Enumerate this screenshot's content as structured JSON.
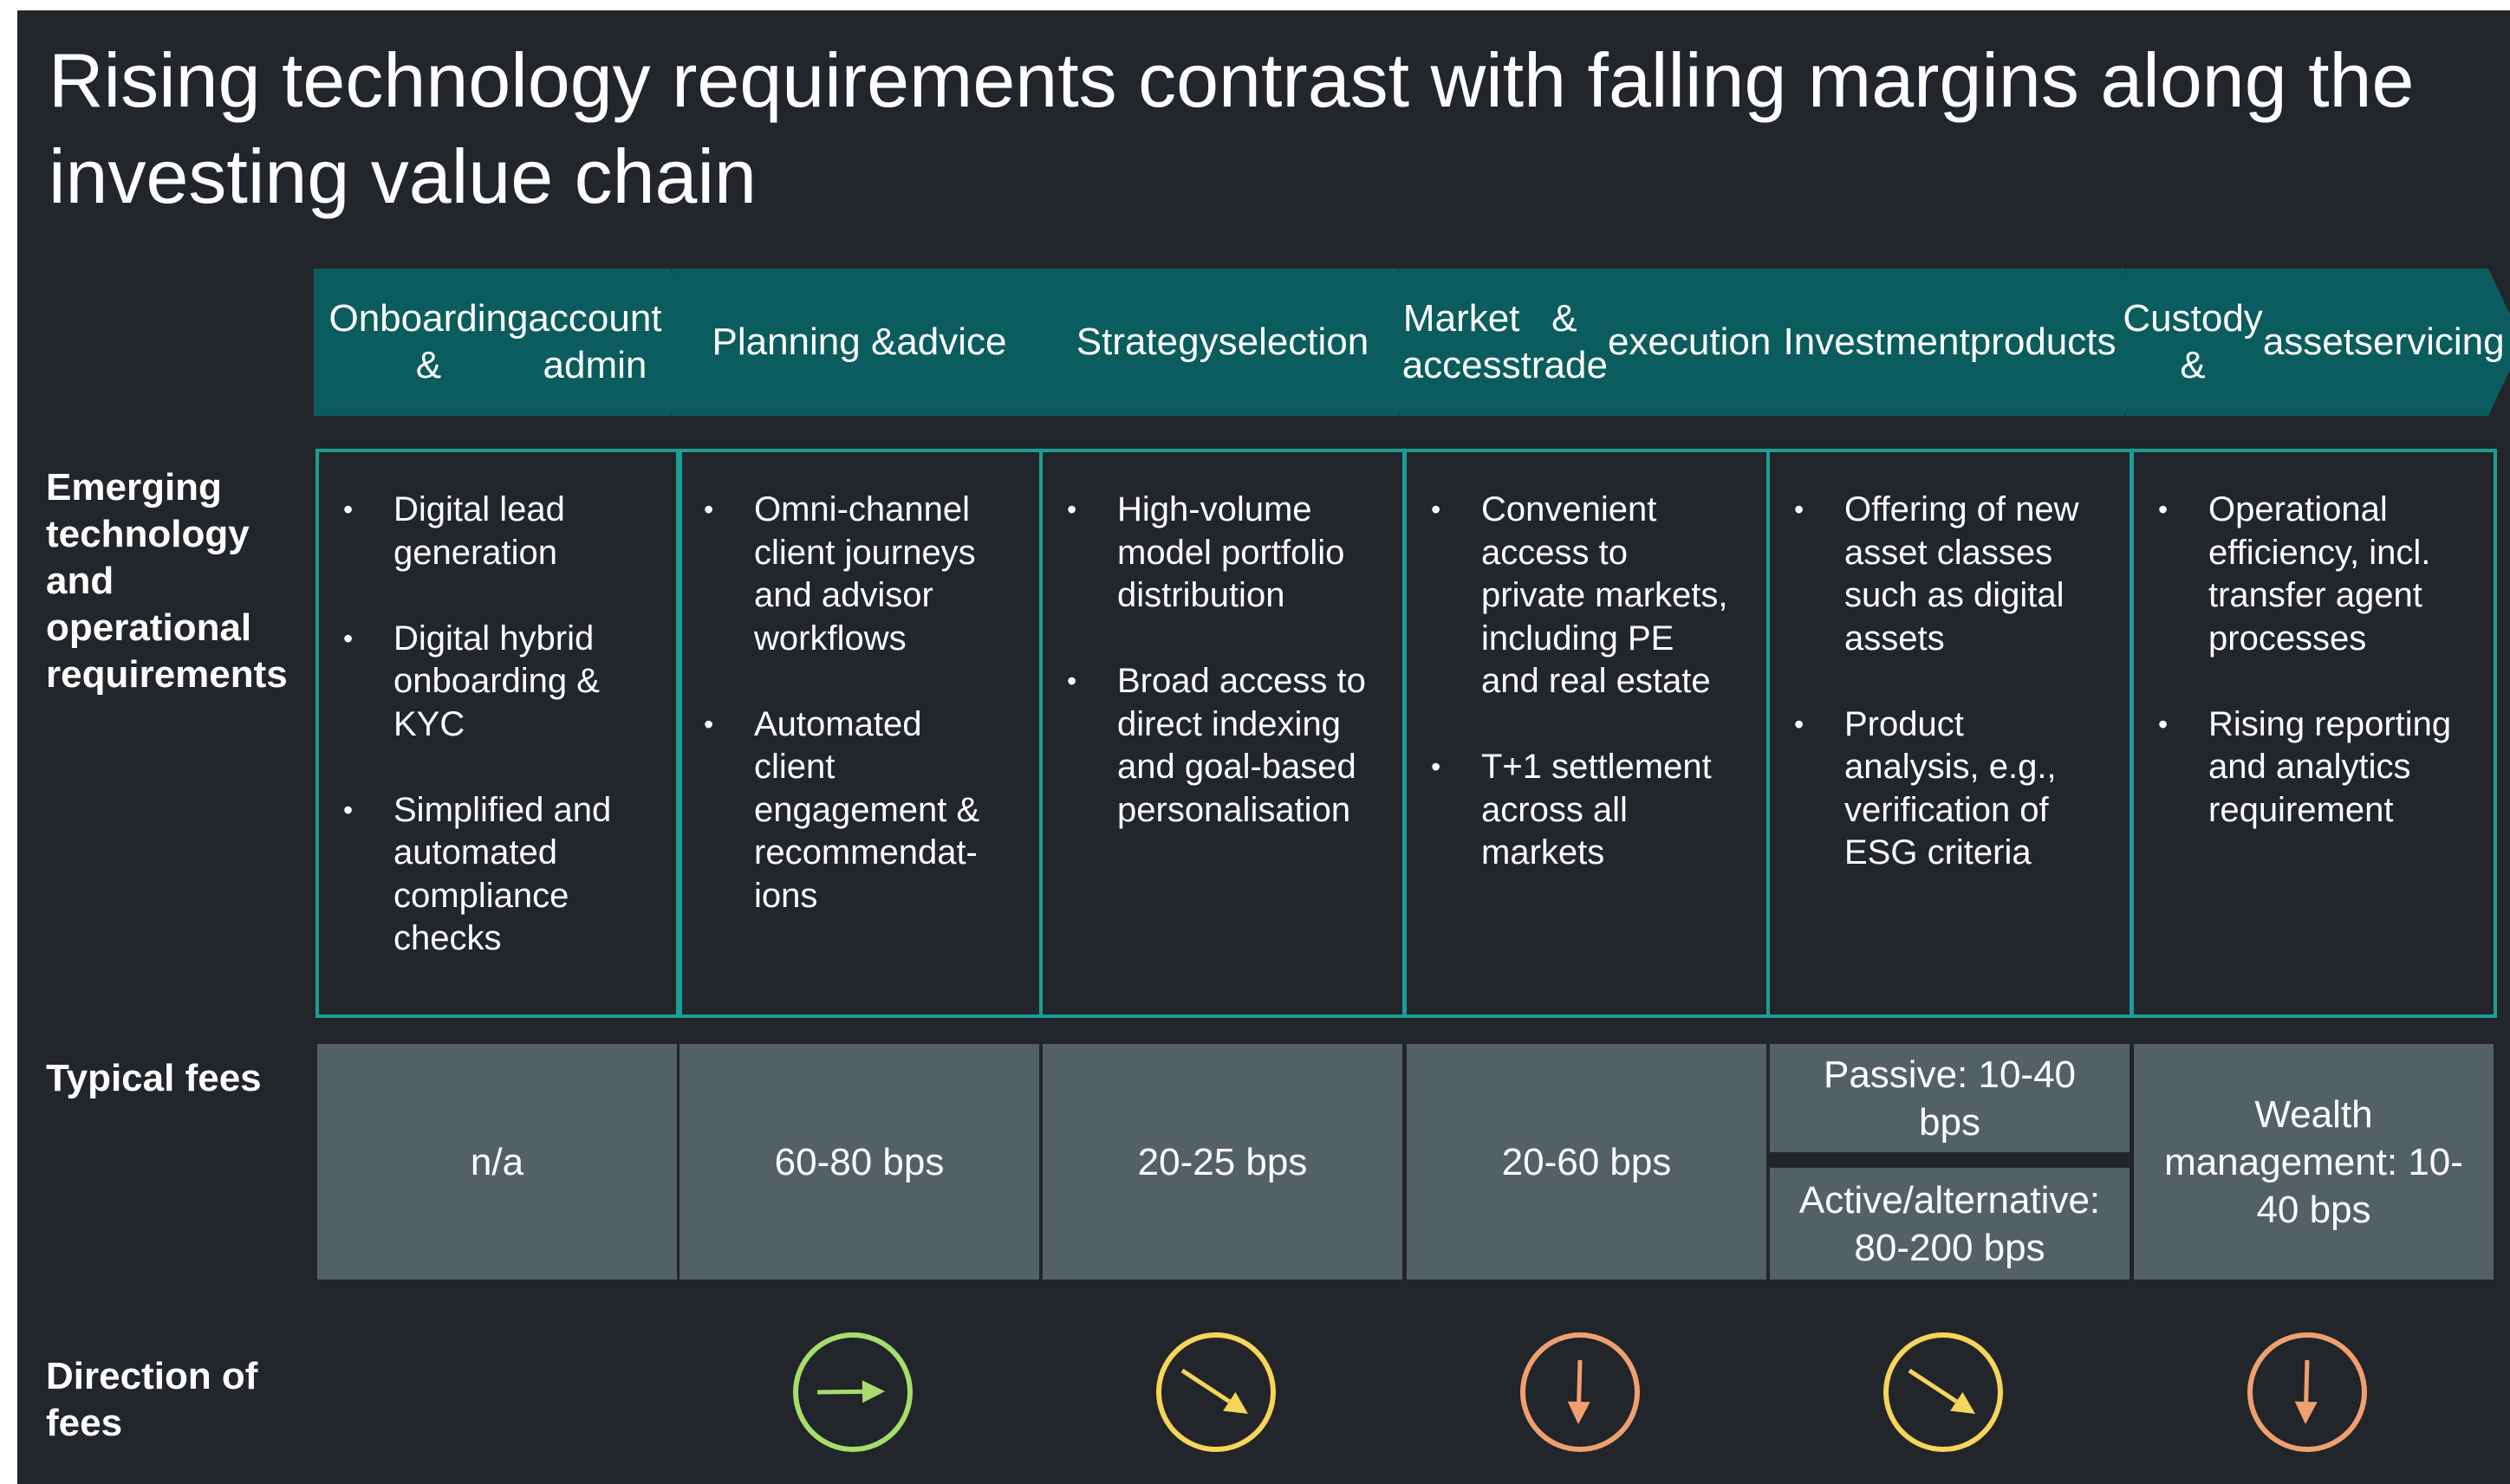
{
  "title": "Rising technology requirements contrast with falling margins along the investing value chain",
  "row_labels": {
    "tech": "Emerging technology and operational requirements",
    "fees": "Typical fees",
    "direction": "Direction of fees"
  },
  "colors": {
    "background": "#22252a",
    "chevron": "#0b5c5f",
    "box_border": "#1b9e96",
    "fee_cell": "#536167",
    "flat": "#a8dc6c",
    "slight_decline": "#f5d55a",
    "strong_decline": "#f0a070"
  },
  "columns": [
    {
      "stage": "Onboarding & account admin",
      "stage_lines": [
        "Onboarding &",
        "account admin"
      ],
      "requirements": [
        [
          "Digital lead",
          "generation"
        ],
        [
          "Digital hybrid",
          "onboarding &",
          "KYC"
        ],
        [
          "Simplified and",
          "automated",
          "compliance",
          "checks"
        ]
      ],
      "fee": "n/a",
      "direction": null
    },
    {
      "stage": "Planning & advice",
      "stage_lines": [
        "Planning &",
        "advice"
      ],
      "requirements": [
        [
          "Omni-channel",
          "client journeys",
          "and advisor",
          "workflows"
        ],
        [
          "Automated",
          "client",
          "engagement &",
          "recommendat-",
          "ions"
        ]
      ],
      "fee": "60-80 bps",
      "direction": {
        "icon": "arrow-right-icon",
        "trend": "flat",
        "color": "#a8dc6c"
      }
    },
    {
      "stage": "Strategy selection",
      "stage_lines": [
        "Strategy",
        "selection"
      ],
      "requirements": [
        [
          "High-volume",
          "model portfolio",
          "distribution"
        ],
        [
          "Broad access to",
          "direct indexing",
          "and goal-based",
          "personalisation"
        ]
      ],
      "fee": "20-25 bps",
      "direction": {
        "icon": "arrow-down-right-icon",
        "trend": "slight decline",
        "color": "#f5d55a"
      }
    },
    {
      "stage": "Market access & trade execution",
      "stage_lines": [
        "Market access",
        "& trade",
        "execution"
      ],
      "requirements": [
        [
          "Convenient",
          "access to",
          "private markets,",
          "including PE",
          "and real estate"
        ],
        [
          "T+1 settlement",
          "across all",
          "markets"
        ]
      ],
      "fee": "20-60 bps",
      "direction": {
        "icon": "arrow-down-icon",
        "trend": "strong decline",
        "color": "#f0a070"
      }
    },
    {
      "stage": "Investment products",
      "stage_lines": [
        "Investment",
        "products"
      ],
      "requirements": [
        [
          "Offering of new",
          "asset classes",
          "such as digital",
          "assets"
        ],
        [
          "Product",
          "analysis, e.g.,",
          "verification of",
          "ESG criteria"
        ]
      ],
      "fee_split": {
        "top": [
          "Passive: 10-40",
          "bps"
        ],
        "bottom": [
          "Active/alternative:",
          "80-200 bps"
        ]
      },
      "direction": {
        "icon": "arrow-down-right-icon",
        "trend": "slight decline",
        "color": "#f5d55a"
      }
    },
    {
      "stage": "Custody & asset servicing",
      "stage_lines": [
        "Custody &",
        "asset",
        "servicing"
      ],
      "requirements": [
        [
          "Operational",
          "efficiency, incl.",
          "transfer agent",
          "processes"
        ],
        [
          "Rising reporting",
          "and analytics",
          "requirement"
        ]
      ],
      "fee_lines": [
        "Wealth",
        "management: 10-",
        "40 bps"
      ],
      "direction": {
        "icon": "arrow-down-icon",
        "trend": "strong decline",
        "color": "#f0a070"
      }
    }
  ]
}
